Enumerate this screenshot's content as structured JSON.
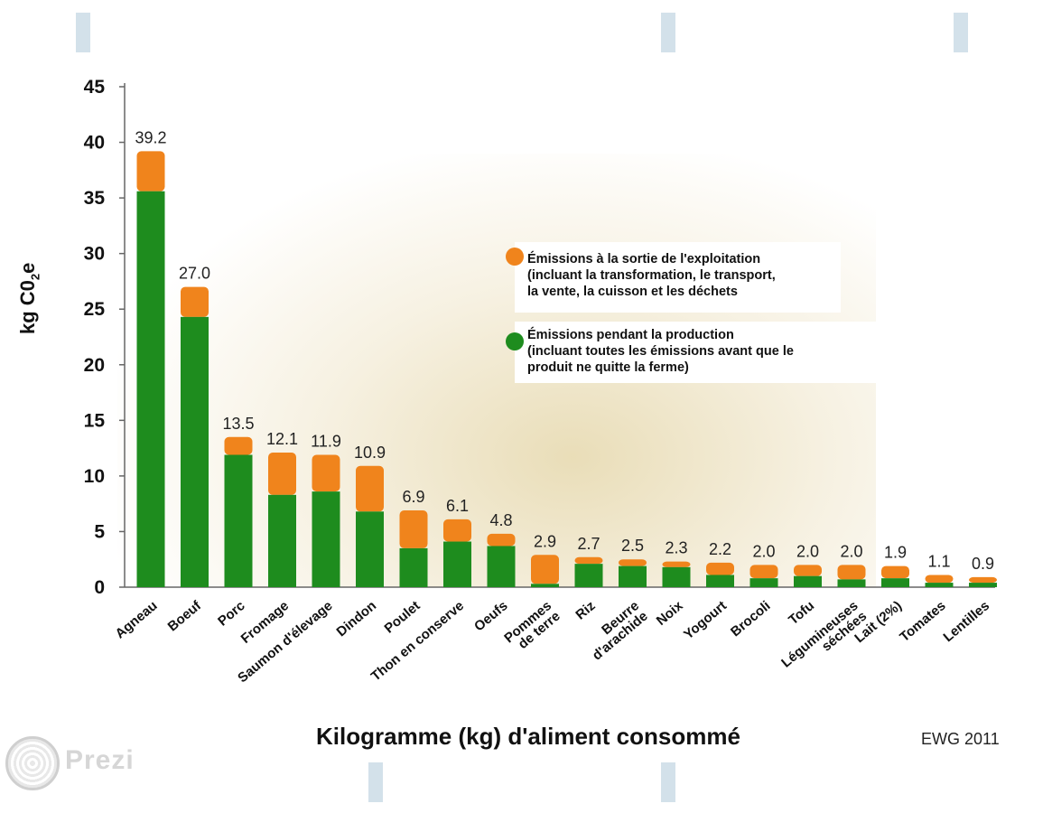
{
  "chart_data": {
    "type": "bar",
    "stacked": true,
    "categories": [
      "Agneau",
      "Boeuf",
      "Porc",
      "Fromage",
      "Saumon d'élevage",
      "Dindon",
      "Poulet",
      "Thon en conserve",
      "Oeufs",
      "Pommes de terre",
      "Riz",
      "Beurre d'arachide",
      "Noix",
      "Yogourt",
      "Brocoli",
      "Tofu",
      "Légumineuses séchées",
      "Lait (2%)",
      "Tomates",
      "Lentilles"
    ],
    "series": [
      {
        "name": "Émissions pendant la production\n(incluant toutes les émissions avant que le\nproduit ne quitte la ferme)",
        "color": "#1e8c1e",
        "values": [
          35.6,
          24.3,
          11.9,
          8.3,
          8.6,
          6.8,
          3.5,
          4.1,
          3.7,
          0.3,
          2.1,
          1.9,
          1.8,
          1.1,
          0.8,
          1.0,
          0.7,
          0.8,
          0.4,
          0.4
        ]
      },
      {
        "name": "Émissions à la sortie de l'exploitation\n(incluant la transformation, le transport,\nla vente, la cuisson et les déchets",
        "color": "#f0841c",
        "values": [
          3.6,
          2.7,
          1.6,
          3.8,
          3.3,
          4.1,
          3.4,
          2.0,
          1.1,
          2.6,
          0.6,
          0.6,
          0.5,
          1.1,
          1.2,
          1.0,
          1.3,
          1.1,
          0.7,
          0.5
        ]
      }
    ],
    "totals": [
      "39.2",
      "27.0",
      "13.5",
      "12.1",
      "11.9",
      "10.9",
      "6.9",
      "6.1",
      "4.8",
      "2.9",
      "2.7",
      "2.5",
      "2.3",
      "2.2",
      "2.0",
      "2.0",
      "2.0",
      "1.9",
      "1.1",
      "0.9"
    ],
    "ylim": [
      0,
      45
    ],
    "yticks": [
      "0",
      "5",
      "10",
      "15",
      "20",
      "25",
      "30",
      "35",
      "40",
      "45"
    ],
    "ylabel": "kg C0",
    "ylabel_sub": "2",
    "ylabel_suffix": "e",
    "xlabel": "Kilogramme (kg) d'aliment consommé"
  },
  "source": "EWG 2011",
  "logo_text": "Prezi",
  "colors": {
    "production": "#1e8c1e",
    "post_farm": "#f0841c",
    "deco": "#d3e1ea"
  }
}
